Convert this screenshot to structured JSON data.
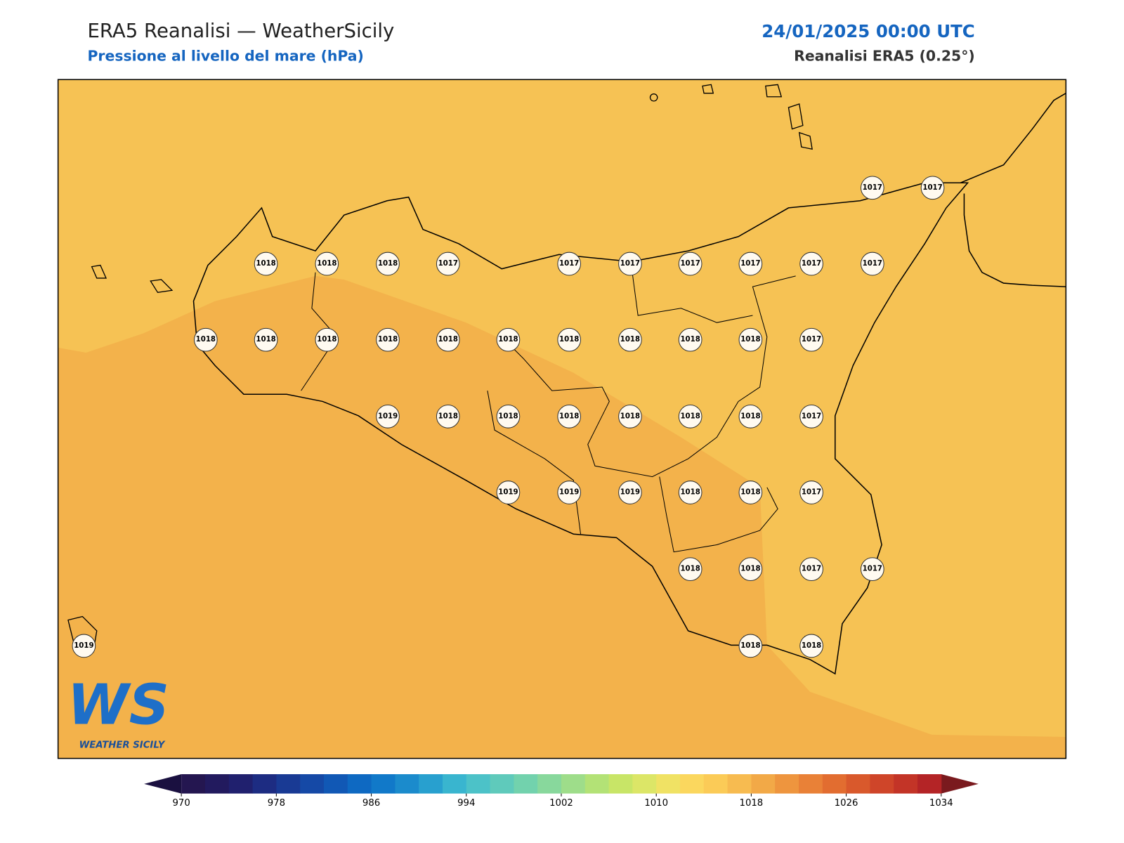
{
  "header": {
    "title": "ERA5 Reanalisi — WeatherSicily",
    "subtitle": "Pressione al livello del mare (hPa)",
    "datetime": "24/01/2025 00:00 UTC",
    "source": "Reanalisi ERA5 (0.25°)"
  },
  "map": {
    "points": [
      1017,
      1017,
      1018,
      1018,
      1018,
      1017,
      1017,
      1017,
      1017,
      1017,
      1017,
      1017,
      1018,
      1018,
      1018,
      1018,
      1018,
      1018,
      1018,
      1018,
      1018,
      1018,
      1017,
      1019,
      1018,
      1018,
      1018,
      1018,
      1018,
      1018,
      1017,
      1019,
      1019,
      1019,
      1018,
      1018,
      1017,
      1018,
      1018,
      1017,
      1017,
      1019,
      1018,
      1018
    ]
  },
  "colorbar": {
    "ticks": [
      970,
      978,
      986,
      994,
      1002,
      1010,
      1018,
      1026,
      1034
    ]
  },
  "logo": {
    "mark": "WS",
    "text": "WEATHER SICILY"
  }
}
